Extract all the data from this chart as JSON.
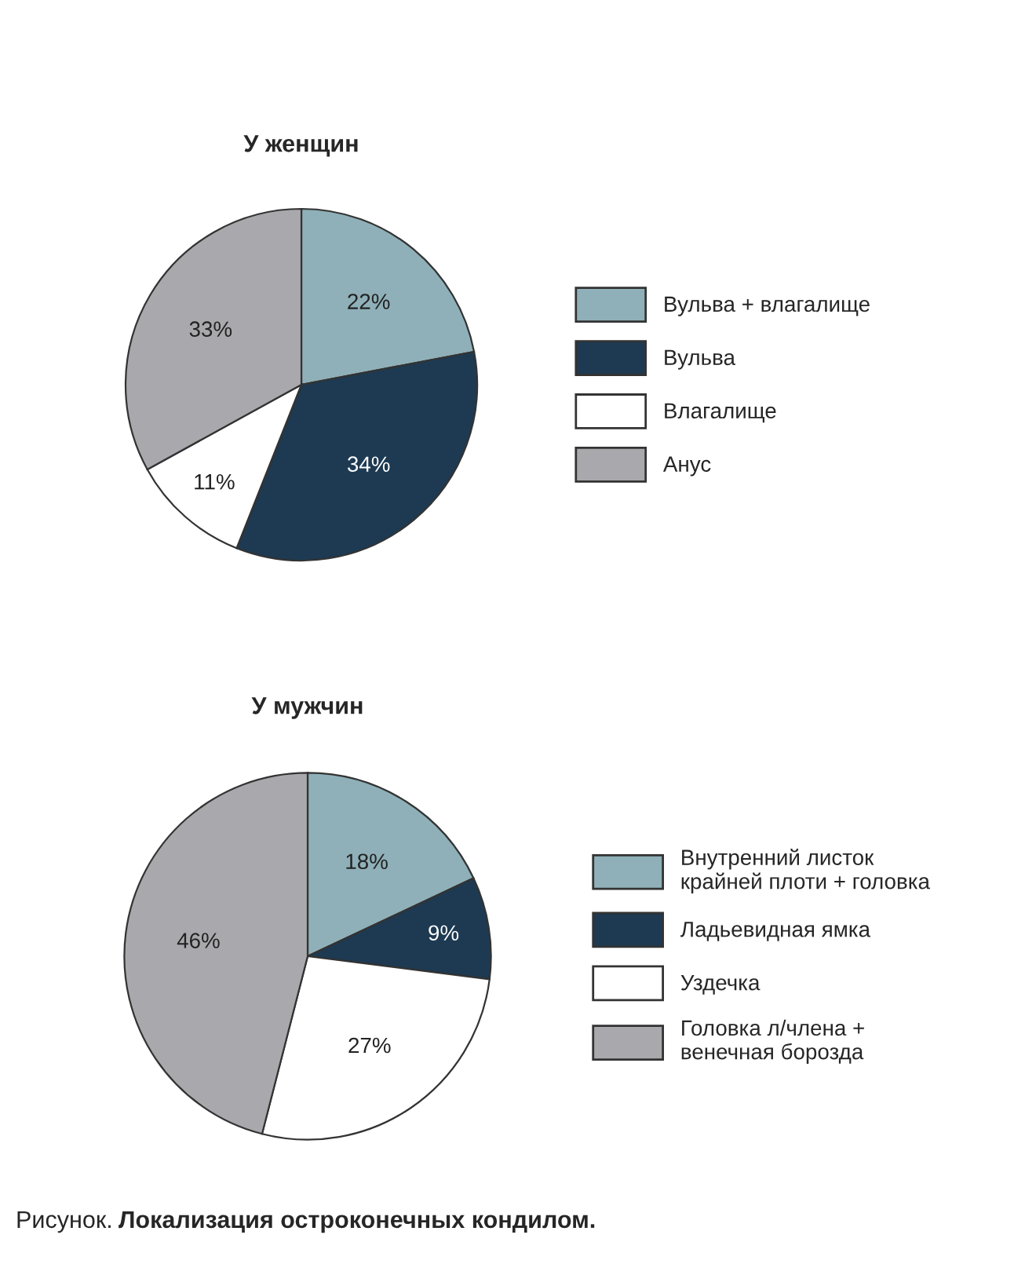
{
  "chart_data": [
    {
      "type": "pie",
      "title": "У женщин",
      "categories": [
        "Вульва + влагалище",
        "Вульва",
        "Влагалище",
        "Анус"
      ],
      "values": [
        22,
        34,
        11,
        33
      ],
      "value_labels": [
        "22%",
        "34%",
        "11%",
        "33%"
      ],
      "colors": [
        "#8fb0b8",
        "#1d3a52",
        "#ffffff",
        "#a9a9ad"
      ],
      "legend": "right"
    },
    {
      "type": "pie",
      "title": "У мужчин",
      "categories": [
        "Внутренний листок\nкрайней плоти + головка",
        "Ладьевидная ямка",
        "Уздечка",
        "Головка л/члена +\nвенечная борозда"
      ],
      "values": [
        18,
        9,
        27,
        46
      ],
      "value_labels": [
        "18%",
        "9%",
        "27%",
        "46%"
      ],
      "colors": [
        "#8fb0b8",
        "#1d3a52",
        "#ffffff",
        "#a9a9ad"
      ],
      "legend": "right",
      "annotations": [
        "Рисунок.",
        "Локализация остроконечных кондилом."
      ]
    }
  ]
}
